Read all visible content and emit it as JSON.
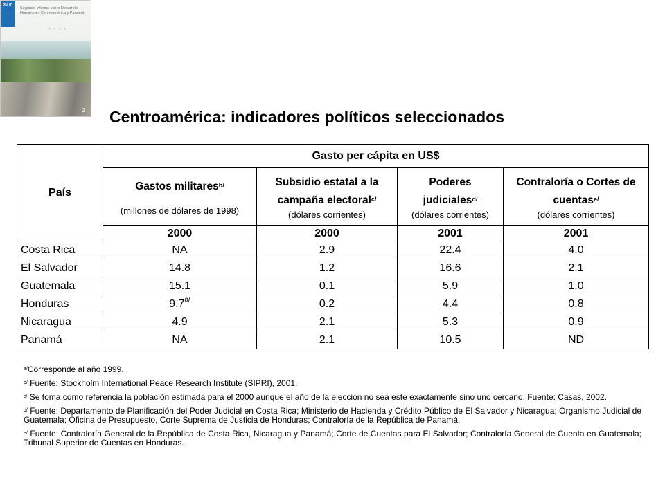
{
  "cover": {
    "logo": "PNUD",
    "title": "Segundo Informe sobre Desarrollo Humano en Centroamérica y Panamá",
    "page_number": "2"
  },
  "title": "Centroamérica: indicadores políticos seleccionados",
  "table": {
    "country_header": "País",
    "group_header": "Gasto per cápita en US$",
    "columns": [
      {
        "label": "Gastos militares",
        "note": "b/",
        "unit": "(millones de dólares de 1998)",
        "year": "2000"
      },
      {
        "label_line1": "Subsidio estatal a la",
        "label_line2": "campaña electoral",
        "note": "c/",
        "unit": "(dólares corrientes)",
        "year": "2000"
      },
      {
        "label_line1": "Poderes",
        "label_line2": "judiciales",
        "note": "d/",
        "unit": "(dólares corrientes)",
        "year": "2001"
      },
      {
        "label_line1": "Contraloría o Cortes de",
        "label_line2": "cuentas",
        "note": "e/",
        "unit": "(dólares corrientes)",
        "year": "2001"
      }
    ],
    "rows": [
      {
        "country": "Costa Rica",
        "values": [
          "NA",
          "2.9",
          "22.4",
          "4.0"
        ]
      },
      {
        "country": "El Salvador",
        "values": [
          "14.8",
          "1.2",
          "16.6",
          "2.1"
        ]
      },
      {
        "country": "Guatemala",
        "values": [
          "15.1",
          "0.1",
          "5.9",
          "1.0"
        ]
      },
      {
        "country": "Honduras",
        "values": [
          "9.7",
          "0.2",
          "4.4",
          "0.8"
        ],
        "first_note": "a/"
      },
      {
        "country": "Nicaragua",
        "values": [
          "4.9",
          "2.1",
          "5.3",
          "0.9"
        ]
      },
      {
        "country": "Panamá",
        "values": [
          "NA",
          "2.1",
          "10.5",
          "ND"
        ]
      }
    ]
  },
  "notes": [
    {
      "mark": "a/",
      "text": "Corresponde al año 1999."
    },
    {
      "mark": "b/",
      "text": " Fuente: Stockholm International Peace Research Institute (SIPRI), 2001."
    },
    {
      "mark": "c/",
      "text": " Se toma como referencia la población estimada para el 2000 aunque el año de la elección no sea este exactamente sino uno cercano. Fuente: Casas, 2002."
    },
    {
      "mark": "d/",
      "text": " Fuente: Departamento de Planificación del Poder Judicial en Costa Rica; Ministerio de Hacienda y Crédito Público de El Salvador y Nicaragua; Organismo Judicial de Guatemala; Oficina de Presupuesto, Corte Suprema de Justicia de Honduras; Contraloría de la República de Panamá."
    },
    {
      "mark": "e/",
      "text": " Fuente: Contraloría General de la República de Costa Rica, Nicaragua y Panamá; Corte de Cuentas para El Salvador; Contraloría General de Cuenta en Guatemala; Tribunal Superior de Cuentas en Honduras."
    }
  ]
}
